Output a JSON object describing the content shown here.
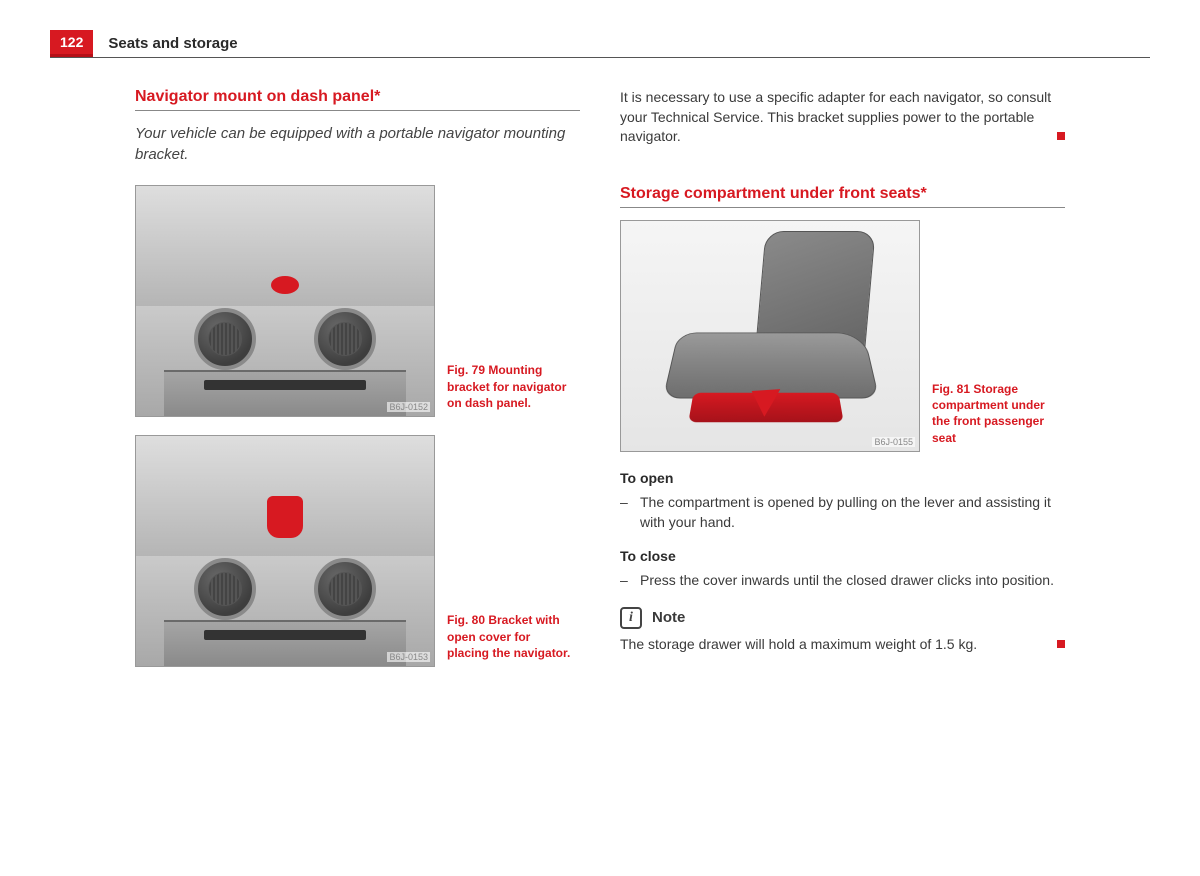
{
  "page": {
    "number": "122",
    "header": "Seats and storage"
  },
  "left": {
    "title": "Navigator mount on dash panel*",
    "intro": "Your vehicle can be equipped with a portable navigator mounting bracket.",
    "fig79": {
      "label": "B6J-0152",
      "caption": "Fig. 79   Mounting bracket for navigator on dash panel."
    },
    "fig80": {
      "label": "B6J-0153",
      "caption": "Fig. 80   Bracket with open cover for placing the navigator."
    }
  },
  "right": {
    "topPara": "It is necessary to use a specific adapter for each navigator, so consult your Technical Service. This bracket supplies power to the portable navigator.",
    "title": "Storage compartment under front seats*",
    "fig81": {
      "label": "B6J-0155",
      "caption": "Fig. 81   Storage compartment under the front passenger seat"
    },
    "openHeading": "To open",
    "openItem": "The compartment is opened by pulling on the lever and assisting it with your hand.",
    "closeHeading": "To close",
    "closeItem": "Press the cover inwards until the closed drawer clicks into position.",
    "noteLabel": "Note",
    "noteText": "The storage drawer will hold a maximum weight of 1.5 kg."
  },
  "colors": {
    "accent": "#d71921",
    "text": "#3a3a3a"
  }
}
